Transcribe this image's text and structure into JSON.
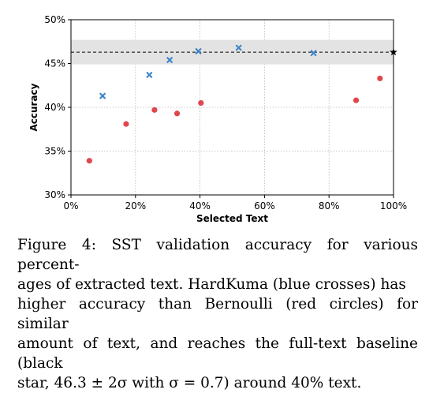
{
  "chart_data": {
    "type": "scatter",
    "xlabel": "Selected Text",
    "ylabel": "Accuracy",
    "xlim": [
      0,
      100
    ],
    "ylim": [
      30,
      50
    ],
    "xticks": [
      "0%",
      "20%",
      "40%",
      "60%",
      "80%",
      "100%"
    ],
    "yticks": [
      "30%",
      "35%",
      "40%",
      "45%",
      "50%"
    ],
    "grid": true,
    "series": [
      {
        "marker": "cross",
        "color": "#3d85c6",
        "points": [
          {
            "x": 9.8,
            "y": 41.3
          },
          {
            "x": 24.3,
            "y": 43.7
          },
          {
            "x": 30.6,
            "y": 45.4
          },
          {
            "x": 39.5,
            "y": 46.4
          },
          {
            "x": 52.0,
            "y": 46.8
          },
          {
            "x": 75.2,
            "y": 46.2
          }
        ]
      },
      {
        "marker": "circle",
        "color": "#e0474c",
        "points": [
          {
            "x": 5.7,
            "y": 33.9
          },
          {
            "x": 17.1,
            "y": 38.1
          },
          {
            "x": 25.9,
            "y": 39.7
          },
          {
            "x": 32.9,
            "y": 39.3
          },
          {
            "x": 40.3,
            "y": 40.5
          },
          {
            "x": 88.4,
            "y": 40.8
          },
          {
            "x": 95.8,
            "y": 43.3
          }
        ]
      },
      {
        "marker": "star",
        "color": "#000000",
        "points": [
          {
            "x": 100,
            "y": 46.3
          }
        ]
      }
    ],
    "baseline": {
      "y": 46.3,
      "band": [
        44.9,
        47.7
      ],
      "band_color": "#e3e3e3"
    }
  },
  "caption": {
    "lines": [
      "Figure 4: SST validation accuracy for various percent-",
      "ages of extracted text.  HardKuma (blue crosses) has",
      "higher accuracy than Bernoulli (red circles) for similar",
      "amount of text, and reaches the full-text baseline (black",
      "star, 46.3 ± 2σ with σ = 0.7) around 40% text."
    ]
  }
}
